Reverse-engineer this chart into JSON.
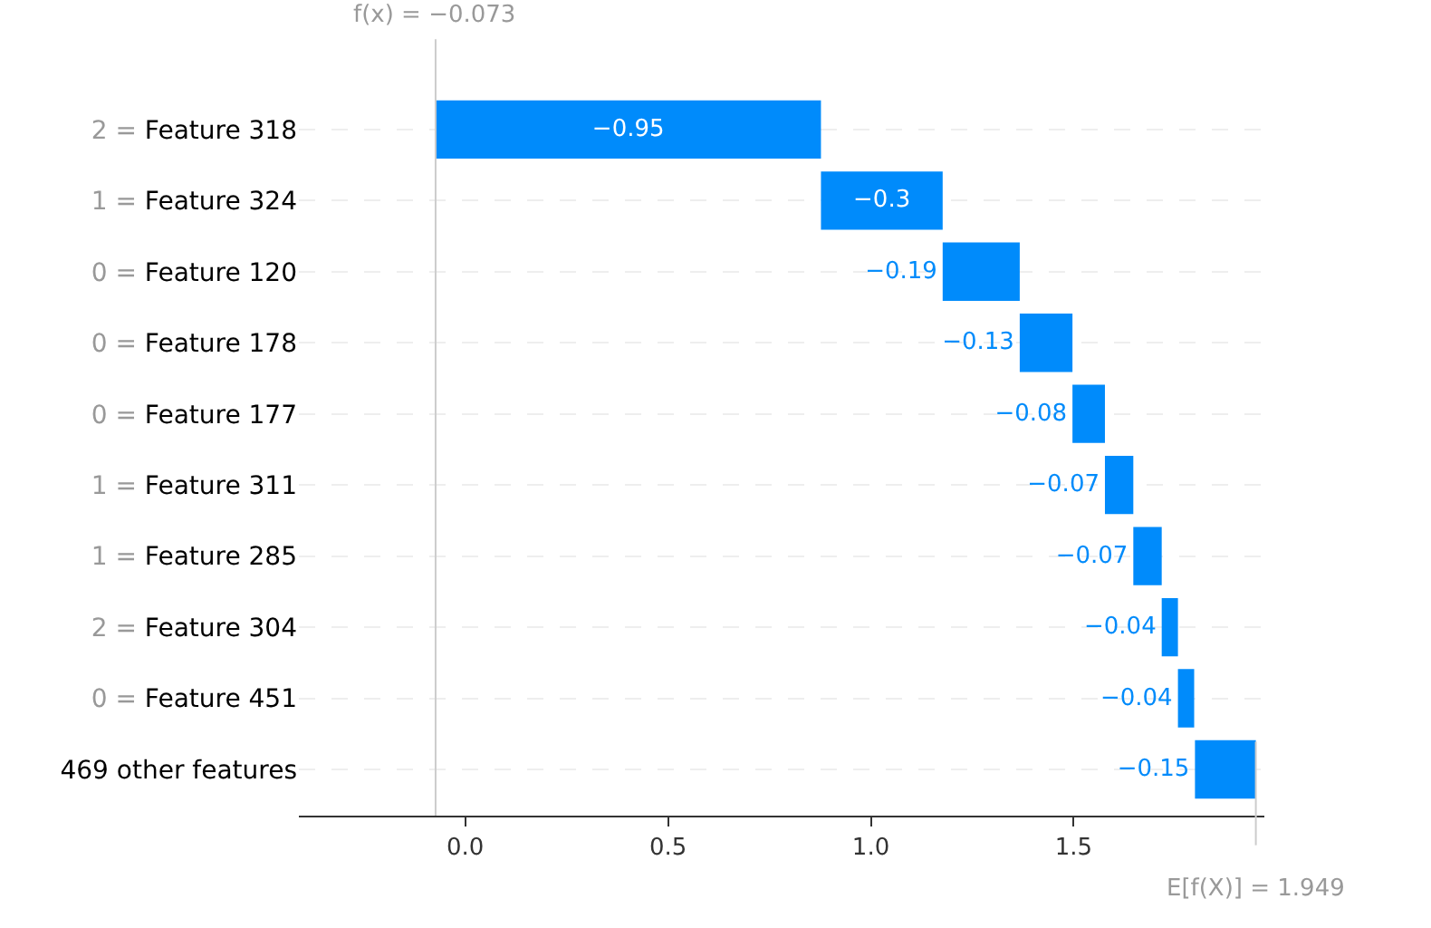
{
  "chart_data": {
    "type": "bar",
    "orientation": "horizontal",
    "categories": [
      "2 = Feature 318",
      "1 = Feature 324",
      "0 = Feature 120",
      "0 = Feature 178",
      "0 = Feature 177",
      "1 = Feature 311",
      "1 = Feature 285",
      "2 = Feature 304",
      "0 = Feature 451",
      "469 other features"
    ],
    "values": [
      -0.95,
      -0.3,
      -0.19,
      -0.13,
      -0.08,
      -0.07,
      -0.07,
      -0.04,
      -0.04,
      -0.15
    ],
    "base": [
      0.877,
      1.177,
      1.367,
      1.497,
      1.577,
      1.647,
      1.717,
      1.757,
      1.797,
      1.949
    ],
    "color": "#008bfb",
    "data_labels": true,
    "xlim": [
      -0.41,
      1.97
    ],
    "xticks": [
      {
        "value": 0,
        "label": "0.0"
      },
      {
        "value": 0.5,
        "label": "0.5"
      },
      {
        "value": 1,
        "label": "1.0"
      },
      {
        "value": 1.5,
        "label": "1.5"
      }
    ],
    "ref_lines": [
      {
        "axis": "x",
        "value": -0.073,
        "label": "f(x) = −0.073",
        "color": "#cccccc"
      },
      {
        "axis": "x",
        "value": 1.949,
        "label": "E[f(X)] = 1.949",
        "color": "#cccccc"
      }
    ],
    "grid": "y",
    "legend": false
  }
}
